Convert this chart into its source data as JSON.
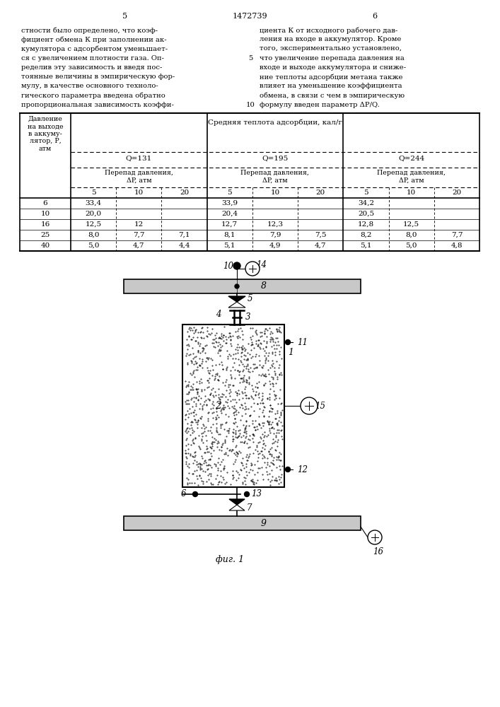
{
  "page_num_left": "5",
  "page_num_center": "1472739",
  "page_num_right": "6",
  "text_left": [
    "стности было определено, что коэф-",
    "фициент обмена К при заполнении ак-",
    "кумулятора с адсорбентом уменьшает-",
    "ся с увеличением плотности газа. Оп-",
    "ределив эту зависимость и введя пос-",
    "тоянные величины в эмпирическую фор-",
    "мулу, в качестве основного техноло-",
    "гического параметра введена обратно",
    "пропорциональная зависимость коэффи-"
  ],
  "text_right": [
    "циента К от исходного рабочего дав-",
    "ления на входе в аккумулятор. Кроме",
    "того, экспериментально установлено,",
    "что увеличение перепада давления на",
    "входе и выходе аккумулятора и сниже-",
    "ние теплоты адсорбции метана также",
    "влияет на уменьшение коэффициента",
    "обмена, в связи с чем в эмпирическую",
    "формулу введен параметр ΔР/Q."
  ],
  "line_num_5_line": 4,
  "line_num_10_line": 9,
  "fig_caption": "фиг. 1",
  "table_rows": [
    [
      "6",
      "33,4",
      "",
      "",
      "33,9",
      "",
      "",
      "34,2",
      "",
      ""
    ],
    [
      "10",
      "20,0",
      "",
      "",
      "20,4",
      "",
      "",
      "20,5",
      "",
      ""
    ],
    [
      "16",
      "12,5",
      "12",
      "",
      "12,7",
      "12,3",
      "",
      "12,8",
      "12,5",
      ""
    ],
    [
      "25",
      "8,0",
      "7,7",
      "7,1",
      "8,1",
      "7,9",
      "7,5",
      "8,2",
      "8,0",
      "7,7"
    ],
    [
      "40",
      "5,0",
      "4,7",
      "4,4",
      "5,1",
      "4,9",
      "4,7",
      "5,1",
      "5,0",
      "4,8"
    ]
  ]
}
